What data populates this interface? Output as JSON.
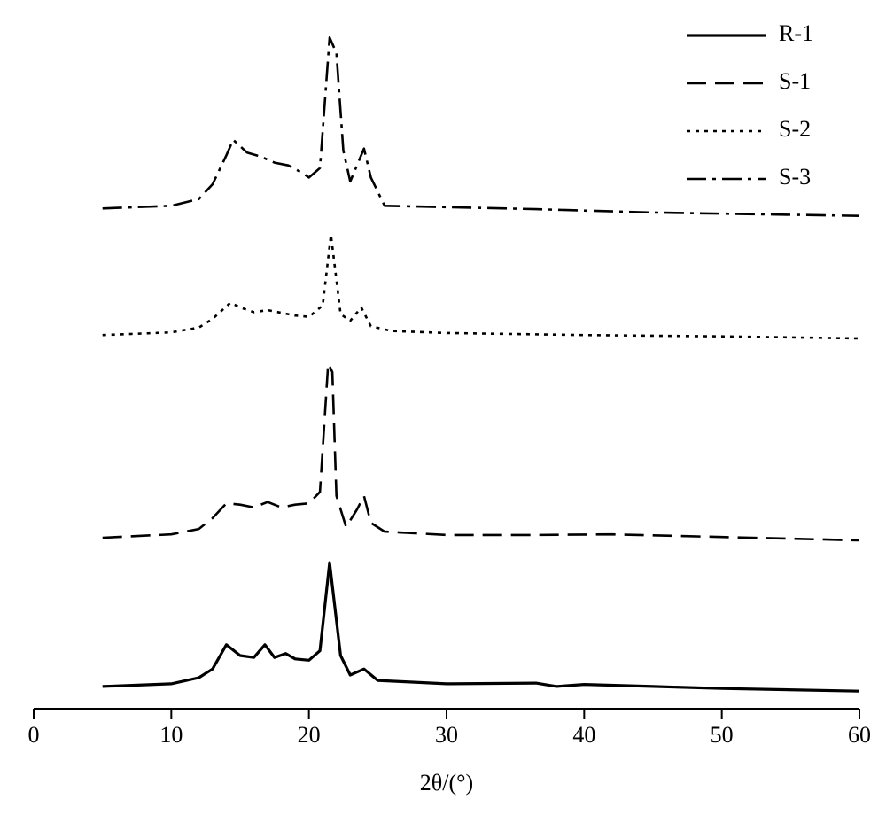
{
  "chart_data": {
    "type": "line",
    "x_label": "2θ/(°)",
    "xlim": [
      0,
      60
    ],
    "xticks": [
      0,
      10,
      20,
      30,
      40,
      50,
      60
    ],
    "ylim": [
      0,
      100
    ],
    "legend": "upper right",
    "series": [
      {
        "name": "R-1",
        "color": "#000000",
        "style": "solid",
        "x": [
          5,
          10,
          12,
          13,
          14,
          15,
          16,
          16.8,
          17.5,
          18.3,
          19,
          20,
          20.8,
          21.5,
          22.3,
          23,
          24,
          25,
          30,
          36.5,
          38,
          40,
          45,
          50,
          60
        ],
        "values": [
          3.3,
          3.7,
          4.6,
          5.9,
          9.5,
          7.9,
          7.6,
          9.5,
          7.6,
          8.2,
          7.4,
          7.2,
          8.6,
          21.7,
          7.9,
          5.0,
          5.9,
          4.2,
          3.7,
          3.8,
          3.3,
          3.6,
          3.3,
          3.0,
          2.6
        ]
      },
      {
        "name": "S-1",
        "color": "#000000",
        "style": "dashed",
        "x": [
          5,
          10,
          12,
          13,
          14,
          15,
          16,
          17,
          18,
          19,
          20,
          20.8,
          21.4,
          21.7,
          22,
          22.7,
          23.5,
          24,
          24.5,
          25.5,
          30,
          36.5,
          42,
          50,
          60
        ],
        "values": [
          25.4,
          25.9,
          26.7,
          28.3,
          30.5,
          30.3,
          29.9,
          30.7,
          29.9,
          30.3,
          30.5,
          32.2,
          51.3,
          50,
          31.6,
          27.0,
          29.6,
          31.6,
          27.6,
          26.3,
          25.8,
          25.8,
          25.9,
          25.5,
          25.0
        ]
      },
      {
        "name": "S-2",
        "color": "#000000",
        "style": "dotted",
        "x": [
          5,
          10,
          12,
          13,
          14.3,
          15,
          16,
          17,
          18,
          19,
          20,
          21,
          21.6,
          22.3,
          23,
          23.8,
          24.5,
          26,
          30,
          40,
          50,
          60
        ],
        "values": [
          55.5,
          55.9,
          56.6,
          57.9,
          60.3,
          59.6,
          58.9,
          59.2,
          58.8,
          58.4,
          58.2,
          59.9,
          70.4,
          58.6,
          57.6,
          59.6,
          56.8,
          56.1,
          55.8,
          55.5,
          55.3,
          55.0
        ]
      },
      {
        "name": "S-3",
        "color": "#000000",
        "style": "dashdot",
        "x": [
          5,
          10,
          12,
          13,
          14,
          14.5,
          15.5,
          16.5,
          17.5,
          18.5,
          19.5,
          20,
          20.8,
          21.5,
          22,
          22.5,
          23,
          24,
          24.5,
          25.5,
          30,
          36.5,
          45,
          60
        ],
        "values": [
          74.3,
          74.7,
          75.7,
          77.9,
          82.2,
          84.5,
          82.6,
          82.0,
          81.1,
          80.7,
          79.6,
          78.9,
          80.3,
          99.7,
          97.4,
          82.9,
          78.3,
          83.2,
          78.9,
          74.7,
          74.5,
          74.2,
          73.7,
          73.2
        ]
      }
    ]
  }
}
